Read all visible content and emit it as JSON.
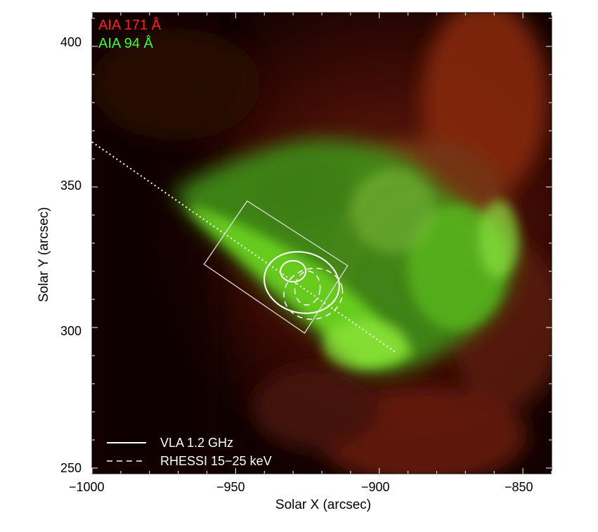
{
  "figure": {
    "channel_labels": [
      {
        "text": "AIA 171 Å",
        "color": "#ff2020"
      },
      {
        "text": "AIA 94 Å",
        "color": "#33ff33"
      }
    ],
    "xlabel": "Solar X (arcsec)",
    "ylabel": "Solar Y (arcsec)",
    "x_ticks": [
      "−1000",
      "−950",
      "−900",
      "−850"
    ],
    "y_ticks": [
      "400",
      "350",
      "300",
      "250"
    ],
    "x_range": [
      -1000,
      -840
    ],
    "y_range": [
      248,
      412
    ],
    "legend": [
      {
        "label": "VLA 1.2 GHz",
        "style": "solid"
      },
      {
        "label": "RHESSI 15−25 keV",
        "style": "dashed"
      }
    ],
    "colors": {
      "red_channel": "#8b1408",
      "green_channel": "#5fd21a",
      "overlay": "#ffffff"
    }
  }
}
